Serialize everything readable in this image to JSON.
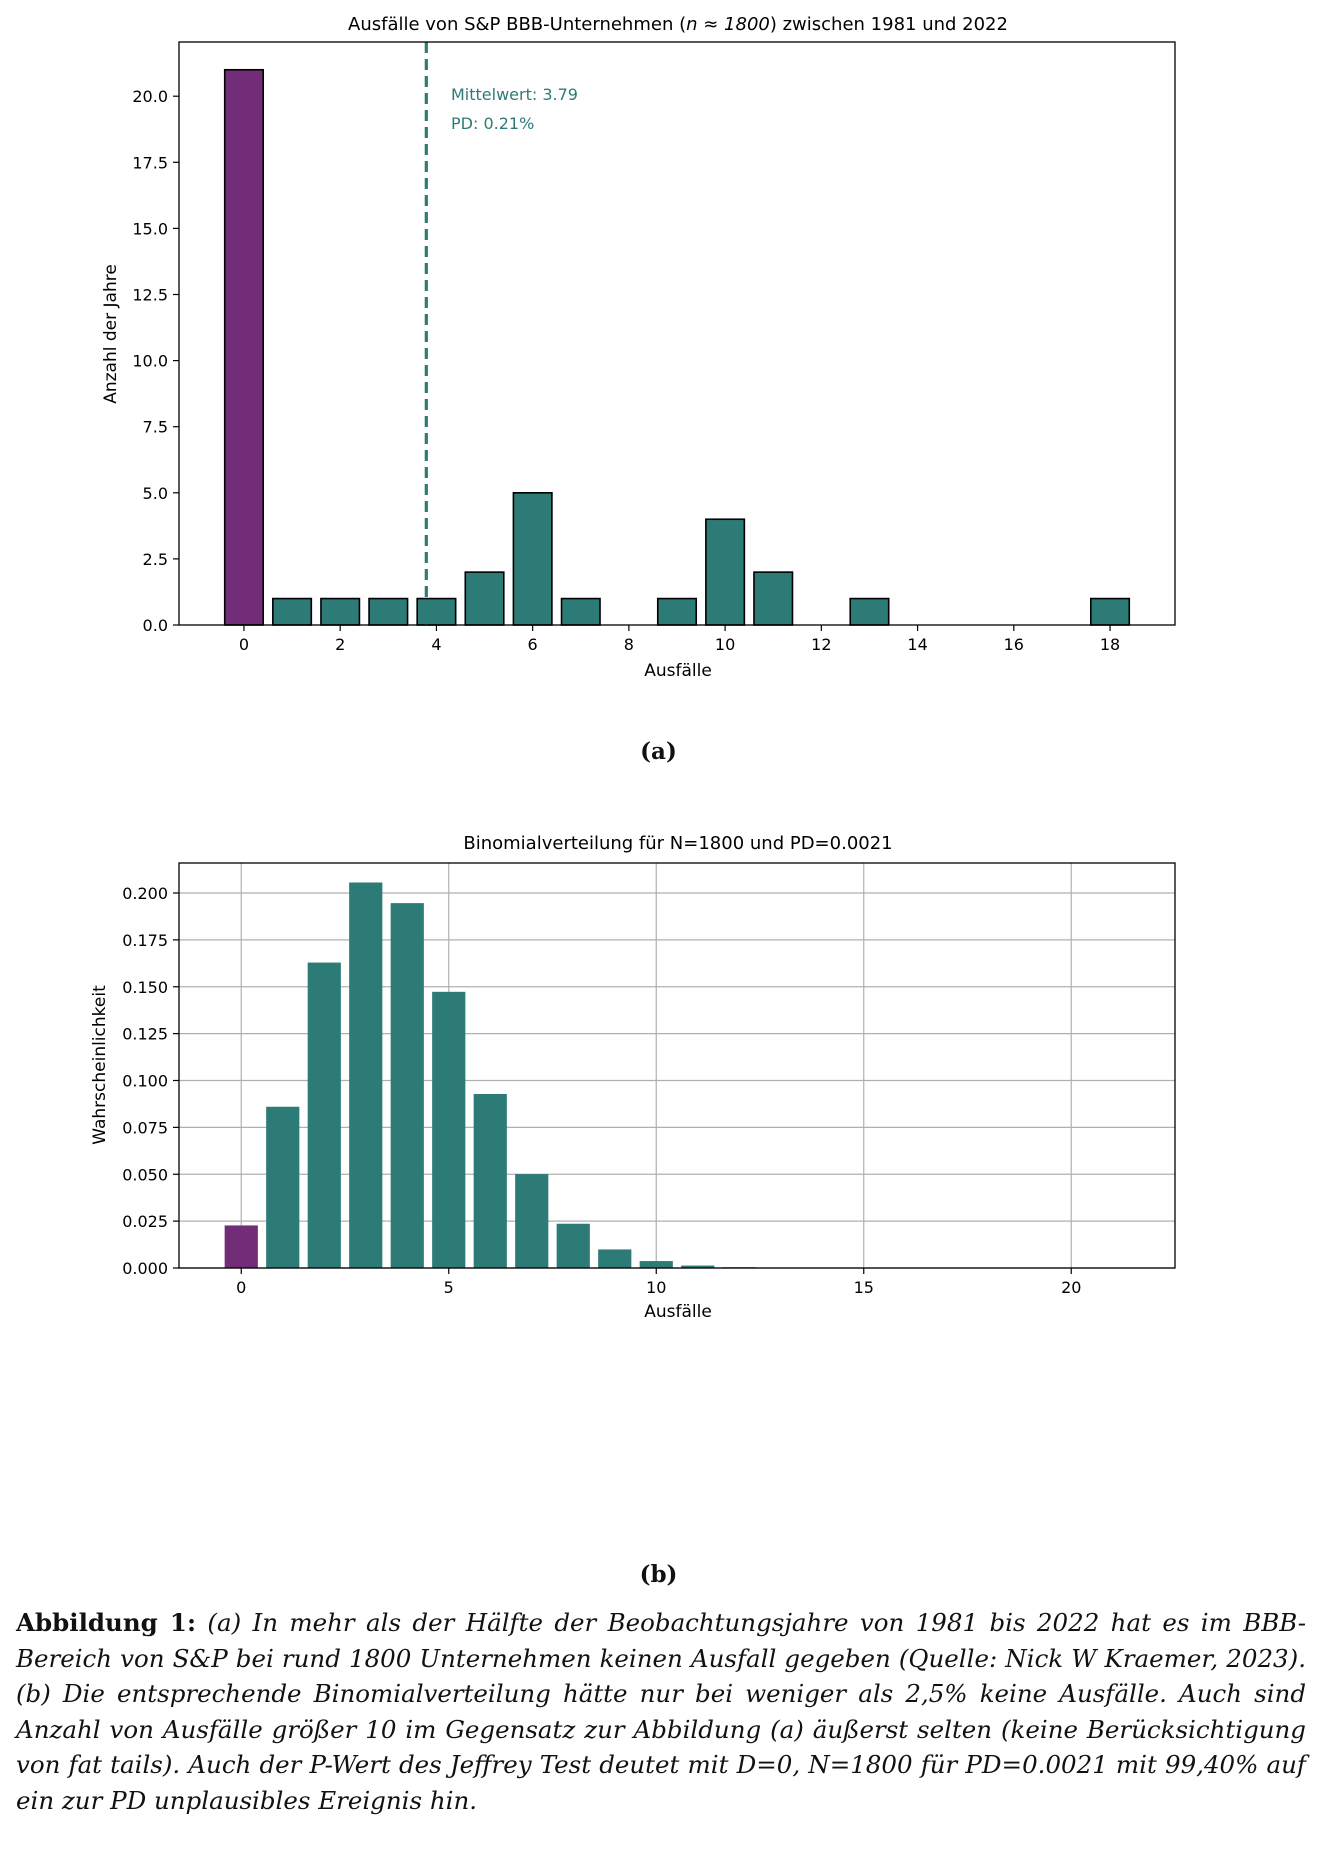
{
  "colors": {
    "teal": "#2d7b77",
    "purple": "#722c78",
    "mean_line": "#2d7b77",
    "grid": "#b0b0b0"
  },
  "chart_data": [
    {
      "type": "bar",
      "title_prefix": "Ausfälle von S&P BBB-Unternehmen (",
      "title_math": "n ≈ 1800",
      "title_suffix": ") zwischen 1981 und 2022",
      "xlabel": "Ausfälle",
      "ylabel": "Anzahl der Jahre",
      "x": [
        0,
        1,
        2,
        3,
        4,
        5,
        6,
        7,
        9,
        10,
        11,
        13,
        18
      ],
      "values": [
        21,
        1,
        1,
        1,
        1,
        2,
        5,
        1,
        1,
        4,
        2,
        1,
        1
      ],
      "highlight_x": 0,
      "xlim": [
        -1.35,
        19.35
      ],
      "ylim": [
        0,
        22.05
      ],
      "xticks": [
        0,
        2,
        4,
        6,
        8,
        10,
        12,
        14,
        16,
        18
      ],
      "yticks": [
        0.0,
        2.5,
        5.0,
        7.5,
        10.0,
        12.5,
        15.0,
        17.5,
        20.0
      ],
      "ytick_labels": [
        "0.0",
        "2.5",
        "5.0",
        "7.5",
        "10.0",
        "12.5",
        "15.0",
        "17.5",
        "20.0"
      ],
      "grid": false,
      "mean_line": 3.79,
      "annotation_lines": [
        "Mittelwert: 3.79",
        "PD: 0.21%"
      ]
    },
    {
      "type": "bar",
      "title": "Binomialverteilung für N=1800 und PD=0.0021",
      "xlabel": "Ausfälle",
      "ylabel": "Wahrscheinlichkeit",
      "x": [
        0,
        1,
        2,
        3,
        4,
        5,
        6,
        7,
        8,
        9,
        10,
        11,
        12,
        13,
        14,
        15,
        16,
        17,
        18,
        19,
        20,
        21
      ],
      "values": [
        0.0227,
        0.086,
        0.1629,
        0.2056,
        0.1946,
        0.1473,
        0.0928,
        0.0501,
        0.0236,
        0.0099,
        0.0037,
        0.0013,
        0.0004,
        0.0001,
        0.0,
        0.0,
        0.0,
        0.0,
        0.0,
        0.0,
        0.0,
        0.0
      ],
      "highlight_x": 0,
      "xlim": [
        -1.5,
        22.5
      ],
      "ylim": [
        0,
        0.216
      ],
      "xticks": [
        0,
        5,
        10,
        15,
        20
      ],
      "yticks": [
        0.0,
        0.025,
        0.05,
        0.075,
        0.1,
        0.125,
        0.15,
        0.175,
        0.2
      ],
      "ytick_labels": [
        "0.000",
        "0.025",
        "0.050",
        "0.075",
        "0.100",
        "0.125",
        "0.150",
        "0.175",
        "0.200"
      ],
      "grid": true
    }
  ],
  "subcaptions": {
    "a": "(a)",
    "b": "(b)"
  },
  "caption": {
    "label": "Abbildung 1:",
    "text": "(a) In mehr als der Hälfte der Beobachtungsjahre von 1981 bis 2022 hat es im BBB-Bereich von S&P bei rund 1800 Unternehmen keinen Ausfall gegeben (Quelle: Nick W Kraemer, 2023).(b) Die entsprechende Binomialverteilung hätte nur bei weniger als 2,5% keine Ausfälle. Auch sind Anzahl von Ausfälle größer 10 im Gegensatz zur Abbildung (a) äußerst selten (keine Berücksichtigung von fat tails). Auch der P-Wert des Jeffrey Test deutet mit D=0, N=1800 für PD=0.0021 mit 99,40% auf ein zur PD unplausibles Ereignis hin."
  }
}
